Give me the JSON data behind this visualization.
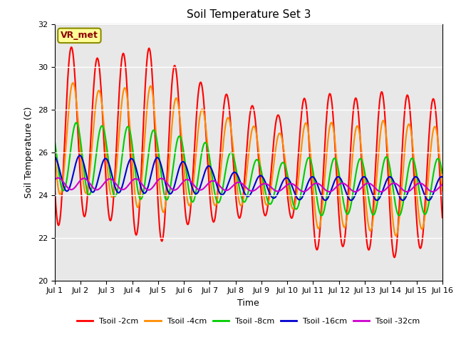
{
  "title": "Soil Temperature Set 3",
  "xlabel": "Time",
  "ylabel": "Soil Temperature (C)",
  "xlim": [
    0,
    15
  ],
  "ylim": [
    20,
    32
  ],
  "yticks": [
    20,
    22,
    24,
    26,
    28,
    30,
    32
  ],
  "xtick_labels": [
    "Jul 1",
    "Jul 2",
    "Jul 3",
    "Jul 4",
    "Jul 5",
    "Jul 6",
    "Jul 7",
    "Jul 8",
    "Jul 9",
    "Jul 10",
    "Jul 11",
    "Jul 12",
    "Jul 13",
    "Jul 14",
    "Jul 15",
    "Jul 16"
  ],
  "xtick_positions": [
    0,
    1,
    2,
    3,
    4,
    5,
    6,
    7,
    8,
    9,
    10,
    11,
    12,
    13,
    14,
    15
  ],
  "annotation_text": "VR_met",
  "annotation_color": "#8B0000",
  "annotation_bg": "#FFFF99",
  "legend_labels": [
    "Tsoil -2cm",
    "Tsoil -4cm",
    "Tsoil -8cm",
    "Tsoil -16cm",
    "Tsoil -32cm"
  ],
  "line_colors": [
    "#FF0000",
    "#FF8C00",
    "#00CC00",
    "#0000CD",
    "#CC00CC"
  ],
  "line_widths": [
    1.5,
    1.5,
    1.5,
    1.5,
    1.5
  ],
  "bg_color": "#E8E8E8",
  "fig_bg": "#FFFFFF",
  "grid_color": "#FFFFFF"
}
